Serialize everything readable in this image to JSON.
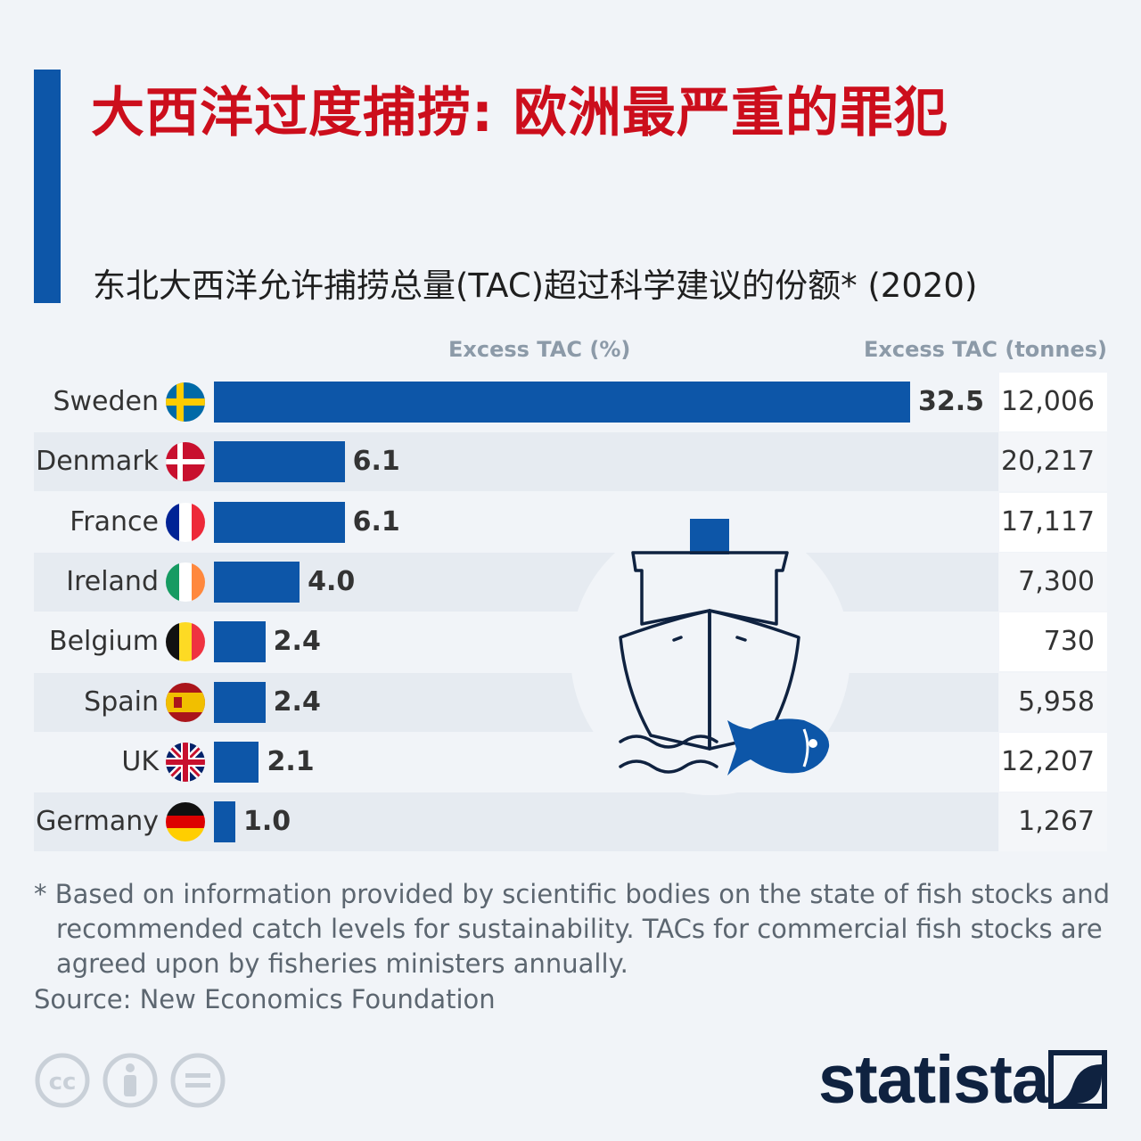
{
  "title": "大西洋过度捕捞: 欧洲最严重的罪犯",
  "subtitle": "东北大西洋允许捕捞总量(TAC)超过科学建议的份额* (2020)",
  "colors": {
    "accent": "#0d56a8",
    "title": "#cc0e1c",
    "logo": "#0f2240"
  },
  "column_headers": {
    "percent": "Excess TAC (%)",
    "tonnes": "Excess TAC (tonnes)"
  },
  "chart_data": {
    "type": "bar",
    "orientation": "horizontal",
    "title": "大西洋过度捕捞: 欧洲最严重的罪犯",
    "subtitle": "东北大西洋允许捕捞总量(TAC)超过科学建议的份额* (2020)",
    "categories": [
      "Sweden",
      "Denmark",
      "France",
      "Ireland",
      "Belgium",
      "Spain",
      "UK",
      "Germany"
    ],
    "series": [
      {
        "name": "Excess TAC (%)",
        "values": [
          32.5,
          6.1,
          6.1,
          4.0,
          2.4,
          2.4,
          2.1,
          1.0
        ]
      },
      {
        "name": "Excess TAC (tonnes)",
        "values": [
          12006,
          20217,
          17117,
          7300,
          730,
          5958,
          12207,
          1267
        ]
      }
    ],
    "value_labels": [
      "32.5",
      "6.1",
      "6.1",
      "4.0",
      "2.4",
      "2.4",
      "2.1",
      "1.0"
    ],
    "tonnes_labels": [
      "12,006",
      "20,217",
      "17,117",
      "7,300",
      "730",
      "5,958",
      "12,207",
      "1,267"
    ],
    "flags": [
      "sweden-flag-icon",
      "denmark-flag-icon",
      "france-flag-icon",
      "ireland-flag-icon",
      "belgium-flag-icon",
      "spain-flag-icon",
      "uk-flag-icon",
      "germany-flag-icon"
    ],
    "xlim": [
      0,
      32.5
    ],
    "grid": false,
    "legend": "none"
  },
  "footnote": "* Based on information provided by scientific bodies on the state of fish stocks and recommended catch levels for sustainability. TACs for commercial fish stocks are agreed upon by fisheries ministers annually.",
  "source": "Source: New Economics Foundation",
  "logo_text": "statista",
  "license_icons": [
    "cc-icon",
    "by-person-icon",
    "nd-equals-icon"
  ],
  "illustration": "fishing-ship-icon"
}
